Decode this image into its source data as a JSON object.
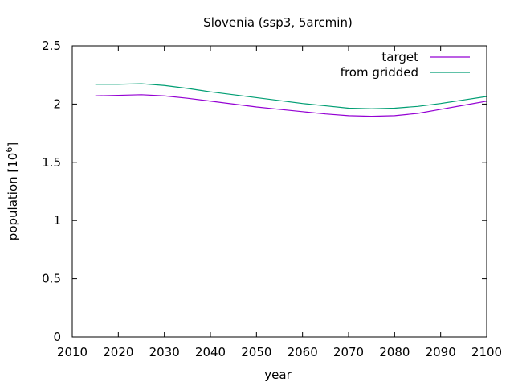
{
  "chart_data": {
    "type": "line",
    "title": "Slovenia (ssp3, 5arcmin)",
    "xlabel": "year",
    "ylabel": "population [10",
    "ylabel_exponent": "6",
    "ylabel_close": "]",
    "xlim": [
      2010,
      2100
    ],
    "ylim": [
      0,
      2.5
    ],
    "xticks": [
      2010,
      2020,
      2030,
      2040,
      2050,
      2060,
      2070,
      2080,
      2090,
      2100
    ],
    "yticks": [
      0,
      0.5,
      1,
      1.5,
      2,
      2.5
    ],
    "ytick_labels": [
      "0",
      "0.5",
      "1",
      "1.5",
      "2",
      "2.5"
    ],
    "grid": false,
    "legend_position": "top-right",
    "x": [
      2015,
      2020,
      2025,
      2030,
      2035,
      2040,
      2045,
      2050,
      2055,
      2060,
      2065,
      2070,
      2075,
      2080,
      2085,
      2090,
      2095,
      2100
    ],
    "series": [
      {
        "name": "target",
        "color": "#9400d3",
        "values": [
          2.07,
          2.075,
          2.08,
          2.07,
          2.05,
          2.025,
          2.0,
          1.975,
          1.955,
          1.935,
          1.915,
          1.9,
          1.895,
          1.9,
          1.92,
          1.955,
          1.99,
          2.025
        ]
      },
      {
        "name": "from gridded",
        "color": "#009e73",
        "values": [
          2.17,
          2.17,
          2.175,
          2.16,
          2.135,
          2.105,
          2.08,
          2.055,
          2.03,
          2.005,
          1.985,
          1.965,
          1.96,
          1.965,
          1.98,
          2.005,
          2.035,
          2.065
        ]
      }
    ]
  }
}
